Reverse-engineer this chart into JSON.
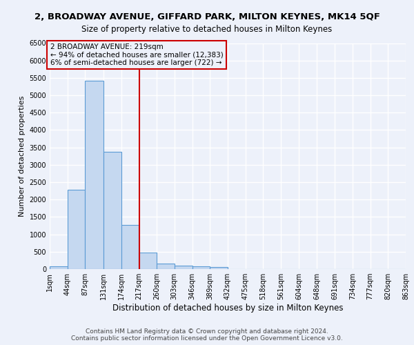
{
  "title": "2, BROADWAY AVENUE, GIFFARD PARK, MILTON KEYNES, MK14 5QF",
  "subtitle": "Size of property relative to detached houses in Milton Keynes",
  "xlabel": "Distribution of detached houses by size in Milton Keynes",
  "ylabel": "Number of detached properties",
  "footer_line1": "Contains HM Land Registry data © Crown copyright and database right 2024.",
  "footer_line2": "Contains public sector information licensed under the Open Government Licence v3.0.",
  "annotation_line1": "2 BROADWAY AVENUE: 219sqm",
  "annotation_line2": "← 94% of detached houses are smaller (12,383)",
  "annotation_line3": "6% of semi-detached houses are larger (722) →",
  "bar_edges": [
    1,
    44,
    87,
    131,
    174,
    217,
    260,
    303,
    346,
    389,
    432,
    475,
    518,
    561,
    604,
    648,
    691,
    734,
    777,
    820,
    863
  ],
  "bar_heights": [
    75,
    2280,
    5420,
    3380,
    1280,
    475,
    165,
    100,
    75,
    50,
    0,
    0,
    0,
    0,
    0,
    0,
    0,
    0,
    0,
    0
  ],
  "bar_color": "#c5d8f0",
  "bar_edge_color": "#5b9bd5",
  "vline_color": "#cc0000",
  "vline_x": 219,
  "ylim_max": 6500,
  "yticks": [
    0,
    500,
    1000,
    1500,
    2000,
    2500,
    3000,
    3500,
    4000,
    4500,
    5000,
    5500,
    6000,
    6500
  ],
  "background_color": "#edf1fa",
  "grid_color": "#ffffff",
  "title_fontsize": 9.5,
  "subtitle_fontsize": 8.5,
  "ylabel_fontsize": 8,
  "xlabel_fontsize": 8.5,
  "tick_fontsize": 7,
  "annotation_fontsize": 7.5,
  "footer_fontsize": 6.5,
  "tick_labels": [
    "1sqm",
    "44sqm",
    "87sqm",
    "131sqm",
    "174sqm",
    "217sqm",
    "260sqm",
    "303sqm",
    "346sqm",
    "389sqm",
    "432sqm",
    "475sqm",
    "518sqm",
    "561sqm",
    "604sqm",
    "648sqm",
    "691sqm",
    "734sqm",
    "777sqm",
    "820sqm",
    "863sqm"
  ]
}
